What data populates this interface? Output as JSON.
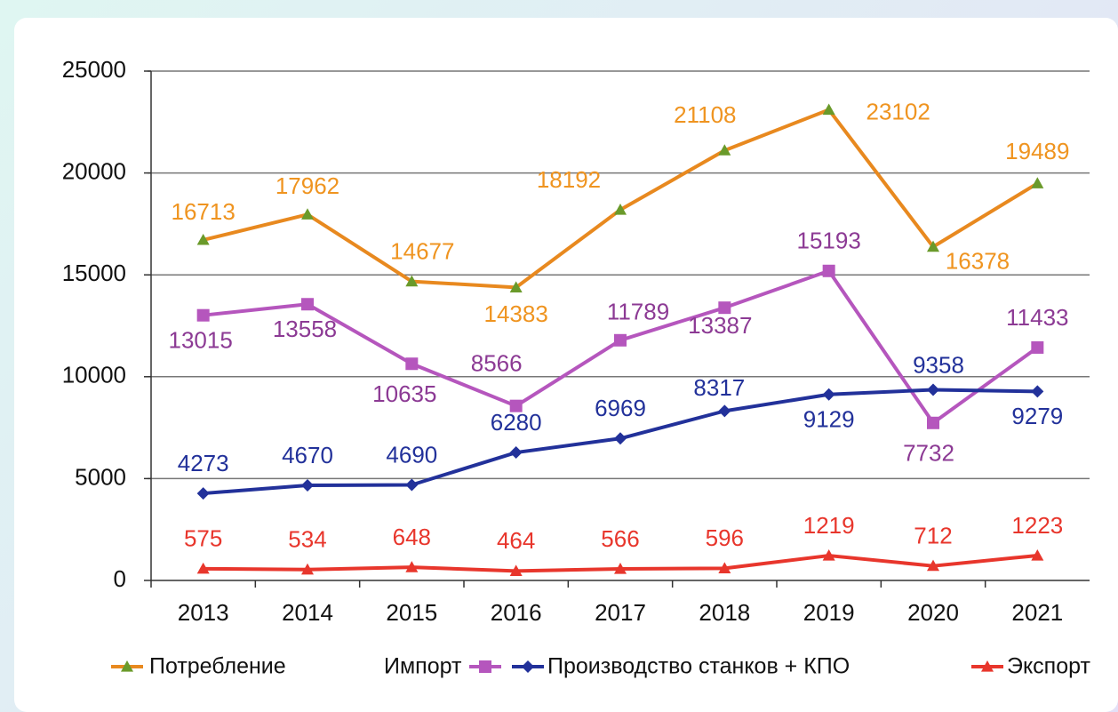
{
  "chart_data": {
    "type": "line",
    "categories": [
      "2013",
      "2014",
      "2015",
      "2016",
      "2017",
      "2018",
      "2019",
      "2020",
      "2021"
    ],
    "series": [
      {
        "name": "Потребление",
        "color": "#e8891f",
        "marker": "triangle",
        "marker_color": "#6a9a2a",
        "label_color": "#ef9420",
        "values": [
          16713,
          17962,
          14677,
          14383,
          18192,
          21108,
          23102,
          16378,
          19489
        ]
      },
      {
        "name": "Импорт",
        "color": "#b556bd",
        "marker": "square",
        "marker_color": "#b556bd",
        "label_color": "#8c3a94",
        "values": [
          13015,
          13558,
          10635,
          8566,
          11789,
          13387,
          15193,
          7732,
          11433
        ]
      },
      {
        "name": "Производство станков + КПО",
        "color": "#22319a",
        "marker": "diamond",
        "marker_color": "#22319a",
        "label_color": "#22319a",
        "values": [
          4273,
          4670,
          4690,
          6280,
          6969,
          8317,
          9129,
          9358,
          9279
        ]
      },
      {
        "name": "Экспорт",
        "color": "#e8362c",
        "marker": "triangle",
        "marker_color": "#e8362c",
        "label_color": "#e8362c",
        "values": [
          575,
          534,
          648,
          464,
          566,
          596,
          1219,
          712,
          1223
        ]
      }
    ],
    "ylim": [
      0,
      25000
    ],
    "yticks": [
      0,
      5000,
      10000,
      15000,
      20000,
      25000
    ],
    "grid": true,
    "legend": "bottom"
  }
}
